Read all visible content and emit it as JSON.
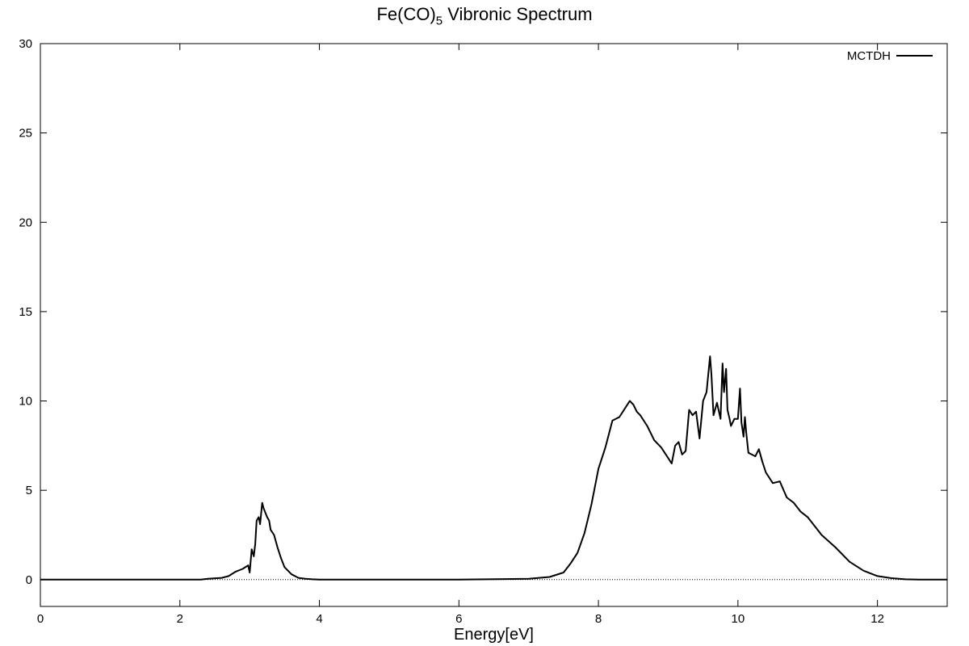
{
  "chart_data": {
    "type": "line",
    "title_main": "Fe(CO)",
    "title_sub": "5",
    "title_rest": " Vibronic Spectrum",
    "xlabel": "Energy[eV]",
    "ylabel": "",
    "xlim": [
      0,
      13
    ],
    "ylim": [
      -1.5,
      30
    ],
    "xticks": [
      0,
      2,
      4,
      6,
      8,
      10,
      12
    ],
    "yticks": [
      0,
      5,
      10,
      15,
      20,
      25,
      30
    ],
    "grid": false,
    "legend_position": "top-right",
    "zero_line": true,
    "series": [
      {
        "name": "MCTDH",
        "color": "#000000",
        "x": [
          0,
          2.3,
          2.4,
          2.6,
          2.7,
          2.8,
          2.9,
          2.98,
          3.0,
          3.03,
          3.06,
          3.08,
          3.1,
          3.13,
          3.15,
          3.18,
          3.2,
          3.23,
          3.25,
          3.28,
          3.3,
          3.35,
          3.4,
          3.45,
          3.5,
          3.6,
          3.7,
          3.8,
          3.9,
          4.0,
          4.5,
          5.0,
          6.0,
          7.0,
          7.3,
          7.5,
          7.6,
          7.7,
          7.8,
          7.9,
          8.0,
          8.1,
          8.2,
          8.3,
          8.4,
          8.45,
          8.5,
          8.55,
          8.6,
          8.7,
          8.8,
          8.9,
          9.0,
          9.05,
          9.1,
          9.15,
          9.2,
          9.25,
          9.3,
          9.35,
          9.4,
          9.45,
          9.5,
          9.55,
          9.6,
          9.62,
          9.65,
          9.7,
          9.75,
          9.78,
          9.8,
          9.83,
          9.85,
          9.88,
          9.9,
          9.95,
          10.0,
          10.03,
          10.05,
          10.08,
          10.1,
          10.12,
          10.15,
          10.2,
          10.25,
          10.3,
          10.35,
          10.4,
          10.5,
          10.6,
          10.7,
          10.8,
          10.9,
          11.0,
          11.2,
          11.4,
          11.6,
          11.8,
          12.0,
          12.2,
          12.4,
          12.6,
          13.0
        ],
        "y": [
          0,
          0,
          0.05,
          0.1,
          0.2,
          0.45,
          0.6,
          0.8,
          0.4,
          1.7,
          1.3,
          2.0,
          3.3,
          3.5,
          3.1,
          4.3,
          4.0,
          3.7,
          3.5,
          3.3,
          2.8,
          2.5,
          1.8,
          1.2,
          0.7,
          0.3,
          0.1,
          0.05,
          0.02,
          0,
          0,
          0,
          0,
          0.05,
          0.15,
          0.4,
          0.9,
          1.5,
          2.6,
          4.2,
          6.2,
          7.4,
          8.9,
          9.1,
          9.7,
          10.0,
          9.8,
          9.4,
          9.2,
          8.6,
          7.8,
          7.4,
          6.8,
          6.5,
          7.5,
          7.7,
          7.0,
          7.2,
          9.5,
          9.2,
          9.4,
          7.9,
          10.0,
          10.5,
          12.5,
          11.5,
          9.2,
          9.9,
          9.0,
          12.1,
          10.5,
          11.8,
          9.5,
          9.0,
          8.6,
          9.0,
          9.0,
          10.7,
          8.8,
          8.0,
          9.1,
          8.2,
          7.1,
          7.0,
          6.9,
          7.3,
          6.6,
          6.0,
          5.4,
          5.5,
          4.6,
          4.3,
          3.8,
          3.5,
          2.5,
          1.8,
          1.0,
          0.5,
          0.2,
          0.08,
          0.02,
          0,
          0
        ]
      }
    ]
  }
}
